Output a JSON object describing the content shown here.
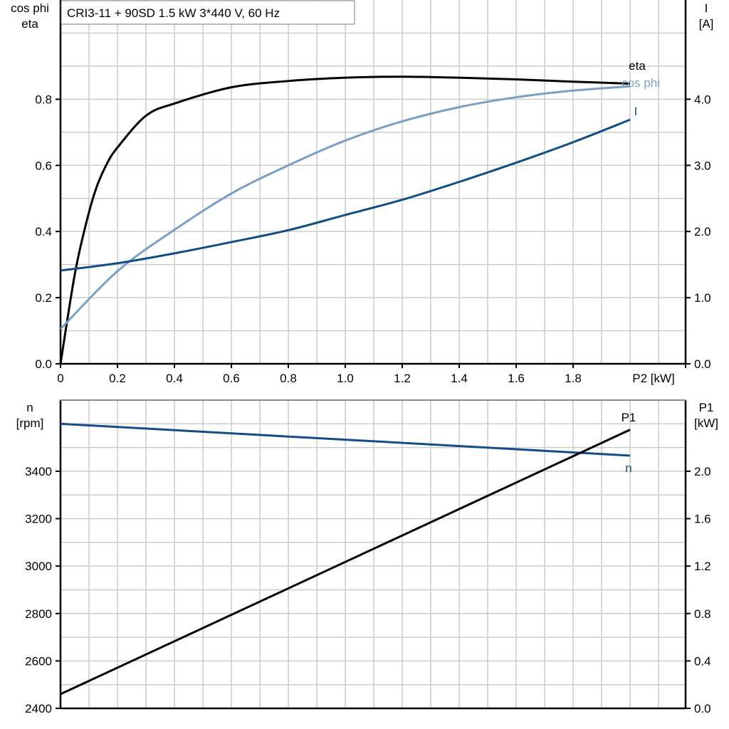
{
  "chart_data": [
    {
      "type": "line",
      "title": "CRI3-11 + 90SD   1.5 kW   3*440 V, 60 Hz",
      "xlabel": "P2 [kW]",
      "ylabel_left": [
        "cos phi",
        "eta"
      ],
      "ylabel_right": [
        "I",
        "[A]"
      ],
      "xlim": [
        0,
        2.2
      ],
      "ylim_left": [
        0,
        1.1
      ],
      "ylim_right": [
        0,
        5.5
      ],
      "x_ticks": [
        "0",
        "0.2",
        "0.4",
        "0.6",
        "0.8",
        "1.0",
        "1.2",
        "1.4",
        "1.6",
        "1.8"
      ],
      "y_ticks_left": [
        "0.0",
        "0.2",
        "0.4",
        "0.6",
        "0.8"
      ],
      "y_ticks_right": [
        "0.0",
        "1.0",
        "2.0",
        "3.0",
        "4.0"
      ],
      "grid": true,
      "series": [
        {
          "name": "eta",
          "axis": "left",
          "color": "#000000",
          "x": [
            0,
            0.05,
            0.09,
            0.125,
            0.16,
            0.2,
            0.3,
            0.4,
            0.6,
            0.8,
            1.0,
            1.2,
            1.4,
            1.6,
            1.8,
            2.0
          ],
          "y": [
            0,
            0.27,
            0.425,
            0.53,
            0.6,
            0.654,
            0.75,
            0.787,
            0.836,
            0.855,
            0.865,
            0.868,
            0.865,
            0.86,
            0.853,
            0.847
          ]
        },
        {
          "name": "cos phi",
          "axis": "left",
          "color": "#7a9fc2",
          "x": [
            0,
            0.2,
            0.4,
            0.6,
            0.8,
            1.0,
            1.2,
            1.4,
            1.6,
            1.8,
            2.0
          ],
          "y": [
            0.105,
            0.28,
            0.405,
            0.515,
            0.6,
            0.675,
            0.733,
            0.776,
            0.806,
            0.826,
            0.839
          ]
        },
        {
          "name": "I",
          "axis": "right",
          "color": "#124e85",
          "x": [
            0,
            0.2,
            0.4,
            0.6,
            0.8,
            1.0,
            1.2,
            1.4,
            1.6,
            1.8,
            2.0
          ],
          "y": [
            1.41,
            1.52,
            1.67,
            1.84,
            2.02,
            2.25,
            2.48,
            2.75,
            3.04,
            3.35,
            3.69
          ]
        }
      ]
    },
    {
      "type": "line",
      "xlim": [
        0,
        2.2
      ],
      "ylabel_left": [
        "n",
        "[rpm]"
      ],
      "ylabel_right": [
        "P1",
        "[kW]"
      ],
      "ylim_left": [
        2400,
        3700
      ],
      "ylim_right": [
        0,
        2.6
      ],
      "y_ticks_left": [
        "2400",
        "2600",
        "2800",
        "3000",
        "3200",
        "3400"
      ],
      "y_ticks_right": [
        "0.0",
        "0.4",
        "0.8",
        "1.2",
        "1.6",
        "2.0"
      ],
      "grid": true,
      "series": [
        {
          "name": "n",
          "axis": "left",
          "color": "#124e85",
          "x": [
            0,
            2.0
          ],
          "y": [
            3600,
            3466
          ]
        },
        {
          "name": "P1",
          "axis": "right",
          "color": "#000000",
          "x": [
            0,
            2.0
          ],
          "y": [
            0.12,
            2.35
          ]
        }
      ]
    }
  ]
}
